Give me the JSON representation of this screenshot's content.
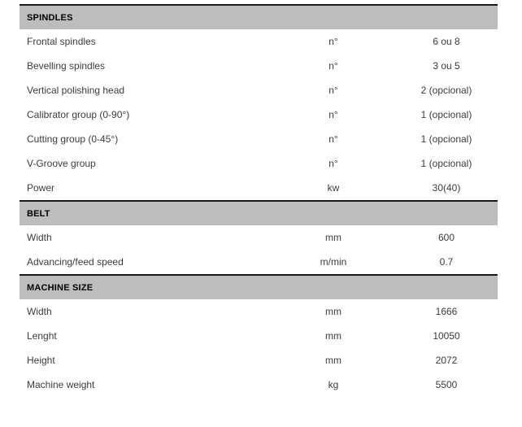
{
  "page": {
    "background_color": "#ffffff"
  },
  "table": {
    "colors": {
      "header_band": "#bdbdbd",
      "rule": "#1a1a1a",
      "header_text": "#000000",
      "row_text": "#3c3c3c"
    },
    "sections": [
      {
        "title": "SPINDLES",
        "rows": [
          {
            "label": "Frontal spindles",
            "unit": "n°",
            "value": "6 ou 8"
          },
          {
            "label": "Bevelling spindles",
            "unit": "n°",
            "value": "3 ou 5"
          },
          {
            "label": "Vertical polishing head",
            "unit": "n°",
            "value": "2 (opcional)"
          },
          {
            "label": "Calibrator group (0-90°)",
            "unit": "n°",
            "value": "1 (opcional)"
          },
          {
            "label": "Cutting group (0-45°)",
            "unit": "n°",
            "value": "1 (opcional)"
          },
          {
            "label": "V-Groove group",
            "unit": "n°",
            "value": "1 (opcional)"
          },
          {
            "label": "Power",
            "unit": "kw",
            "value": "30(40)"
          }
        ]
      },
      {
        "title": "BELT",
        "rows": [
          {
            "label": "Width",
            "unit": "mm",
            "value": "600"
          },
          {
            "label": "Advancing/feed speed",
            "unit": "m/min",
            "value": "0.7"
          }
        ]
      },
      {
        "title": "MACHINE SIZE",
        "rows": [
          {
            "label": "Width",
            "unit": "mm",
            "value": "1666"
          },
          {
            "label": "Lenght",
            "unit": "mm",
            "value": "10050"
          },
          {
            "label": "Height",
            "unit": "mm",
            "value": "2072"
          },
          {
            "label": "Machine weight",
            "unit": "kg",
            "value": "5500"
          }
        ]
      }
    ]
  }
}
